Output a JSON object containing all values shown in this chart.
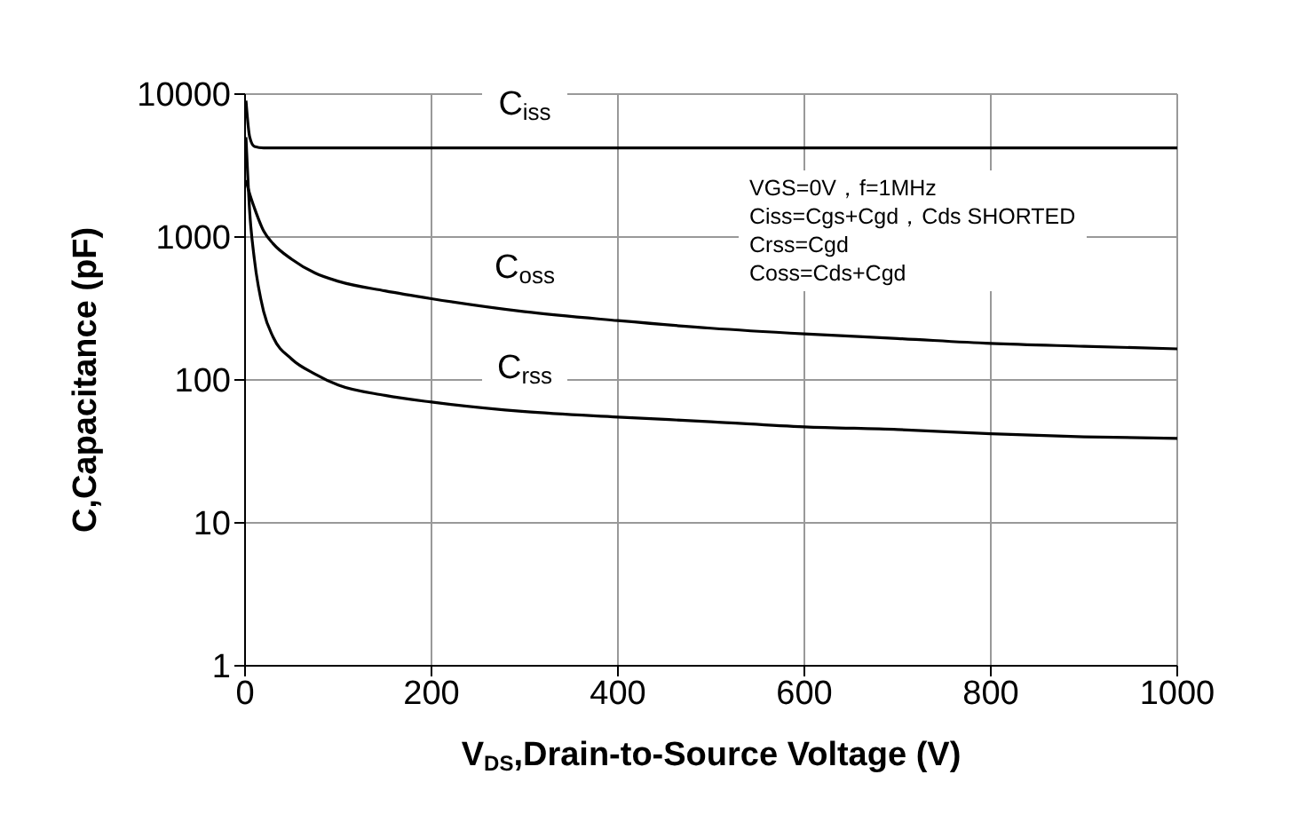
{
  "chart_data": {
    "type": "line",
    "xlabel": "V$_{DS}$,Drain-to-Source Voltage (V)",
    "ylabel": "C,Capacitance (pF)",
    "x": [
      1,
      5,
      10,
      20,
      30,
      50,
      75,
      100,
      150,
      200,
      300,
      400,
      500,
      600,
      700,
      800,
      900,
      1000
    ],
    "series": [
      {
        "name": "C$_{iss}$",
        "color": "#000000",
        "values": [
          9000,
          5000,
          4300,
          4200,
          4200,
          4200,
          4200,
          4200,
          4200,
          4200,
          4200,
          4200,
          4200,
          4200,
          4200,
          4200,
          4200,
          4200
        ]
      },
      {
        "name": "C$_{oss}$",
        "color": "#000000",
        "values": [
          2500,
          2000,
          1600,
          1100,
          900,
          700,
          560,
          490,
          420,
          370,
          300,
          260,
          230,
          210,
          195,
          180,
          172,
          165
        ]
      },
      {
        "name": "C$_{rss}$",
        "color": "#000000",
        "values": [
          5000,
          1500,
          700,
          300,
          200,
          140,
          110,
          92,
          78,
          70,
          60,
          55,
          51,
          47,
          45,
          42,
          40,
          39
        ]
      }
    ],
    "log": "y",
    "xlim": [
      0,
      1000
    ],
    "xticks": [
      0,
      200,
      400,
      600,
      800,
      1000
    ],
    "ylim": [
      1,
      10000
    ],
    "yticks": [
      1,
      10,
      100,
      1000,
      10000
    ],
    "grid": true,
    "marker": "none",
    "line_style": "solid",
    "annotations": [
      "VGS=0V，f=1MHz",
      "Ciss=Cgs+Cgd，Cds SHORTED",
      "Crss=Cgd",
      "Coss=Cds+Cgd"
    ]
  }
}
